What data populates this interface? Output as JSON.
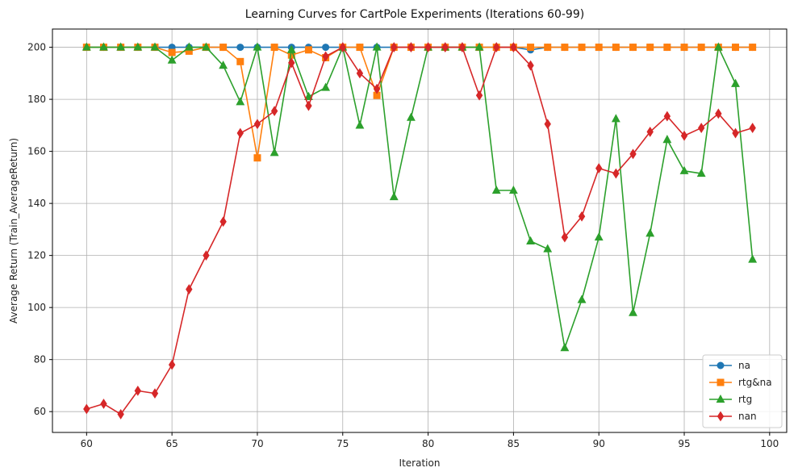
{
  "chart_data": {
    "type": "line",
    "title": "Learning Curves for CartPole Experiments (Iterations 60-99)",
    "xlabel": "Iteration",
    "ylabel": "Average Return (Train_AverageReturn)",
    "xlim": [
      58,
      101
    ],
    "ylim": [
      52,
      207
    ],
    "xticks": [
      60,
      65,
      70,
      75,
      80,
      85,
      90,
      95,
      100
    ],
    "yticks": [
      60,
      80,
      100,
      120,
      140,
      160,
      180,
      200
    ],
    "grid": true,
    "legend_position": "bottom-right",
    "x": [
      60,
      61,
      62,
      63,
      64,
      65,
      66,
      67,
      68,
      69,
      70,
      71,
      72,
      73,
      74,
      75,
      76,
      77,
      78,
      79,
      80,
      81,
      82,
      83,
      84,
      85,
      86,
      87,
      88,
      89,
      90,
      91,
      92,
      93,
      94,
      95,
      96,
      97,
      98,
      99
    ],
    "series": [
      {
        "name": "na",
        "color": "#1f77b4",
        "marker": "circle",
        "values": [
          200,
          200,
          200,
          200,
          200,
          200,
          200,
          200,
          200,
          200,
          200,
          200,
          200,
          200,
          200,
          200,
          200,
          200,
          200,
          200,
          200,
          200,
          200,
          200,
          200,
          200,
          199,
          200,
          200,
          200,
          200,
          200,
          200,
          200,
          200,
          200,
          200,
          200,
          200,
          200
        ]
      },
      {
        "name": "rtg&na",
        "color": "#ff7f0e",
        "marker": "square",
        "values": [
          200,
          200,
          200,
          200,
          200,
          198,
          198.5,
          200,
          200,
          194.5,
          157.5,
          200,
          197,
          199,
          196,
          200,
          200,
          181.5,
          200,
          200,
          200,
          200,
          200,
          200,
          200,
          200,
          200,
          200,
          200,
          200,
          200,
          200,
          200,
          200,
          200,
          200,
          200,
          200,
          200,
          200
        ]
      },
      {
        "name": "rtg",
        "color": "#2ca02c",
        "marker": "triangle",
        "values": [
          200,
          200,
          200,
          200,
          200,
          195,
          200,
          200,
          193,
          179,
          200,
          159.5,
          199,
          181,
          184.5,
          200,
          170,
          200,
          142.5,
          173,
          200,
          200,
          200,
          200,
          145,
          145,
          125.5,
          122.5,
          84.5,
          103,
          127,
          172.5,
          98,
          128.5,
          164.5,
          152.5,
          151.5,
          200,
          186,
          118.5
        ]
      },
      {
        "name": "nan",
        "color": "#d62728",
        "marker": "diamond",
        "values": [
          61,
          63,
          59,
          68,
          67,
          78,
          107,
          120,
          133,
          167,
          170.5,
          175.5,
          194,
          177.5,
          196.5,
          200,
          190,
          184,
          200,
          200,
          200,
          200,
          200,
          181.5,
          200,
          200,
          193,
          170.5,
          127,
          135,
          153.5,
          151.5,
          159,
          167.5,
          173.5,
          166,
          169,
          174.5,
          167,
          169
        ]
      }
    ]
  }
}
